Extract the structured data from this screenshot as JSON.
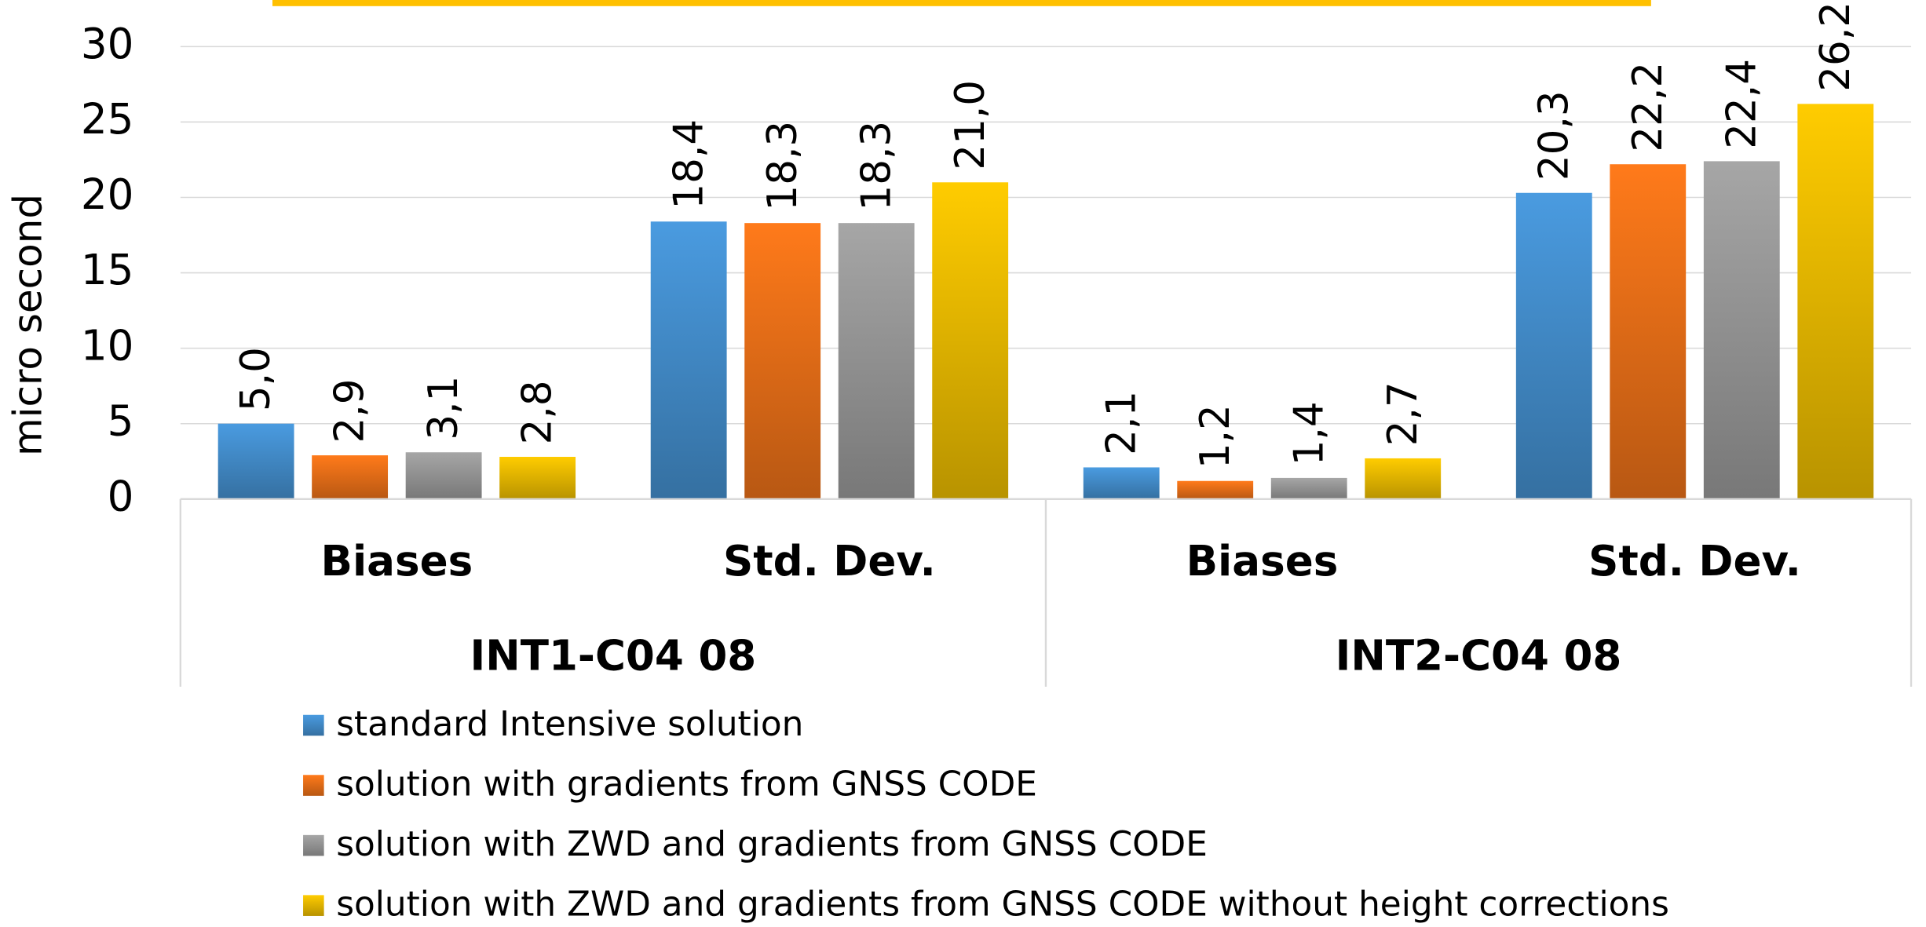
{
  "chart_data": {
    "type": "bar",
    "ylabel": "micro second",
    "categories": [
      "Biases",
      "Std. Dev.",
      "Biases",
      "Std. Dev."
    ],
    "category_groups": [
      "INT1-C04 08",
      "INT2-C04 08"
    ],
    "ylim": [
      0,
      30
    ],
    "yticks": [
      0,
      5,
      10,
      15,
      20,
      25,
      30
    ],
    "grid": true,
    "legend": "bottom",
    "series": [
      {
        "name": "standard Intensive solution",
        "color": "#4a9be0",
        "values": [
          5.0,
          18.4,
          2.1,
          20.3
        ],
        "value_labels": [
          "5,0",
          "18,4",
          "2,1",
          "20,3"
        ]
      },
      {
        "name": "solution with gradients from GNSS CODE",
        "color": "#ff7a1a",
        "values": [
          2.9,
          18.3,
          1.2,
          22.2
        ],
        "value_labels": [
          "2,9",
          "18,3",
          "1,2",
          "22,2"
        ]
      },
      {
        "name": "solution with ZWD and gradients from GNSS CODE",
        "color": "#a6a6a6",
        "values": [
          3.1,
          18.3,
          1.4,
          22.4
        ],
        "value_labels": [
          "3,1",
          "18,3",
          "1,4",
          "22,4"
        ]
      },
      {
        "name": "solution with ZWD and gradients from GNSS CODE without height corrections",
        "color": "#ffcc00",
        "values": [
          2.8,
          21.0,
          2.7,
          26.2
        ],
        "value_labels": [
          "2,8",
          "21,0",
          "2,7",
          "26,2"
        ]
      }
    ]
  }
}
